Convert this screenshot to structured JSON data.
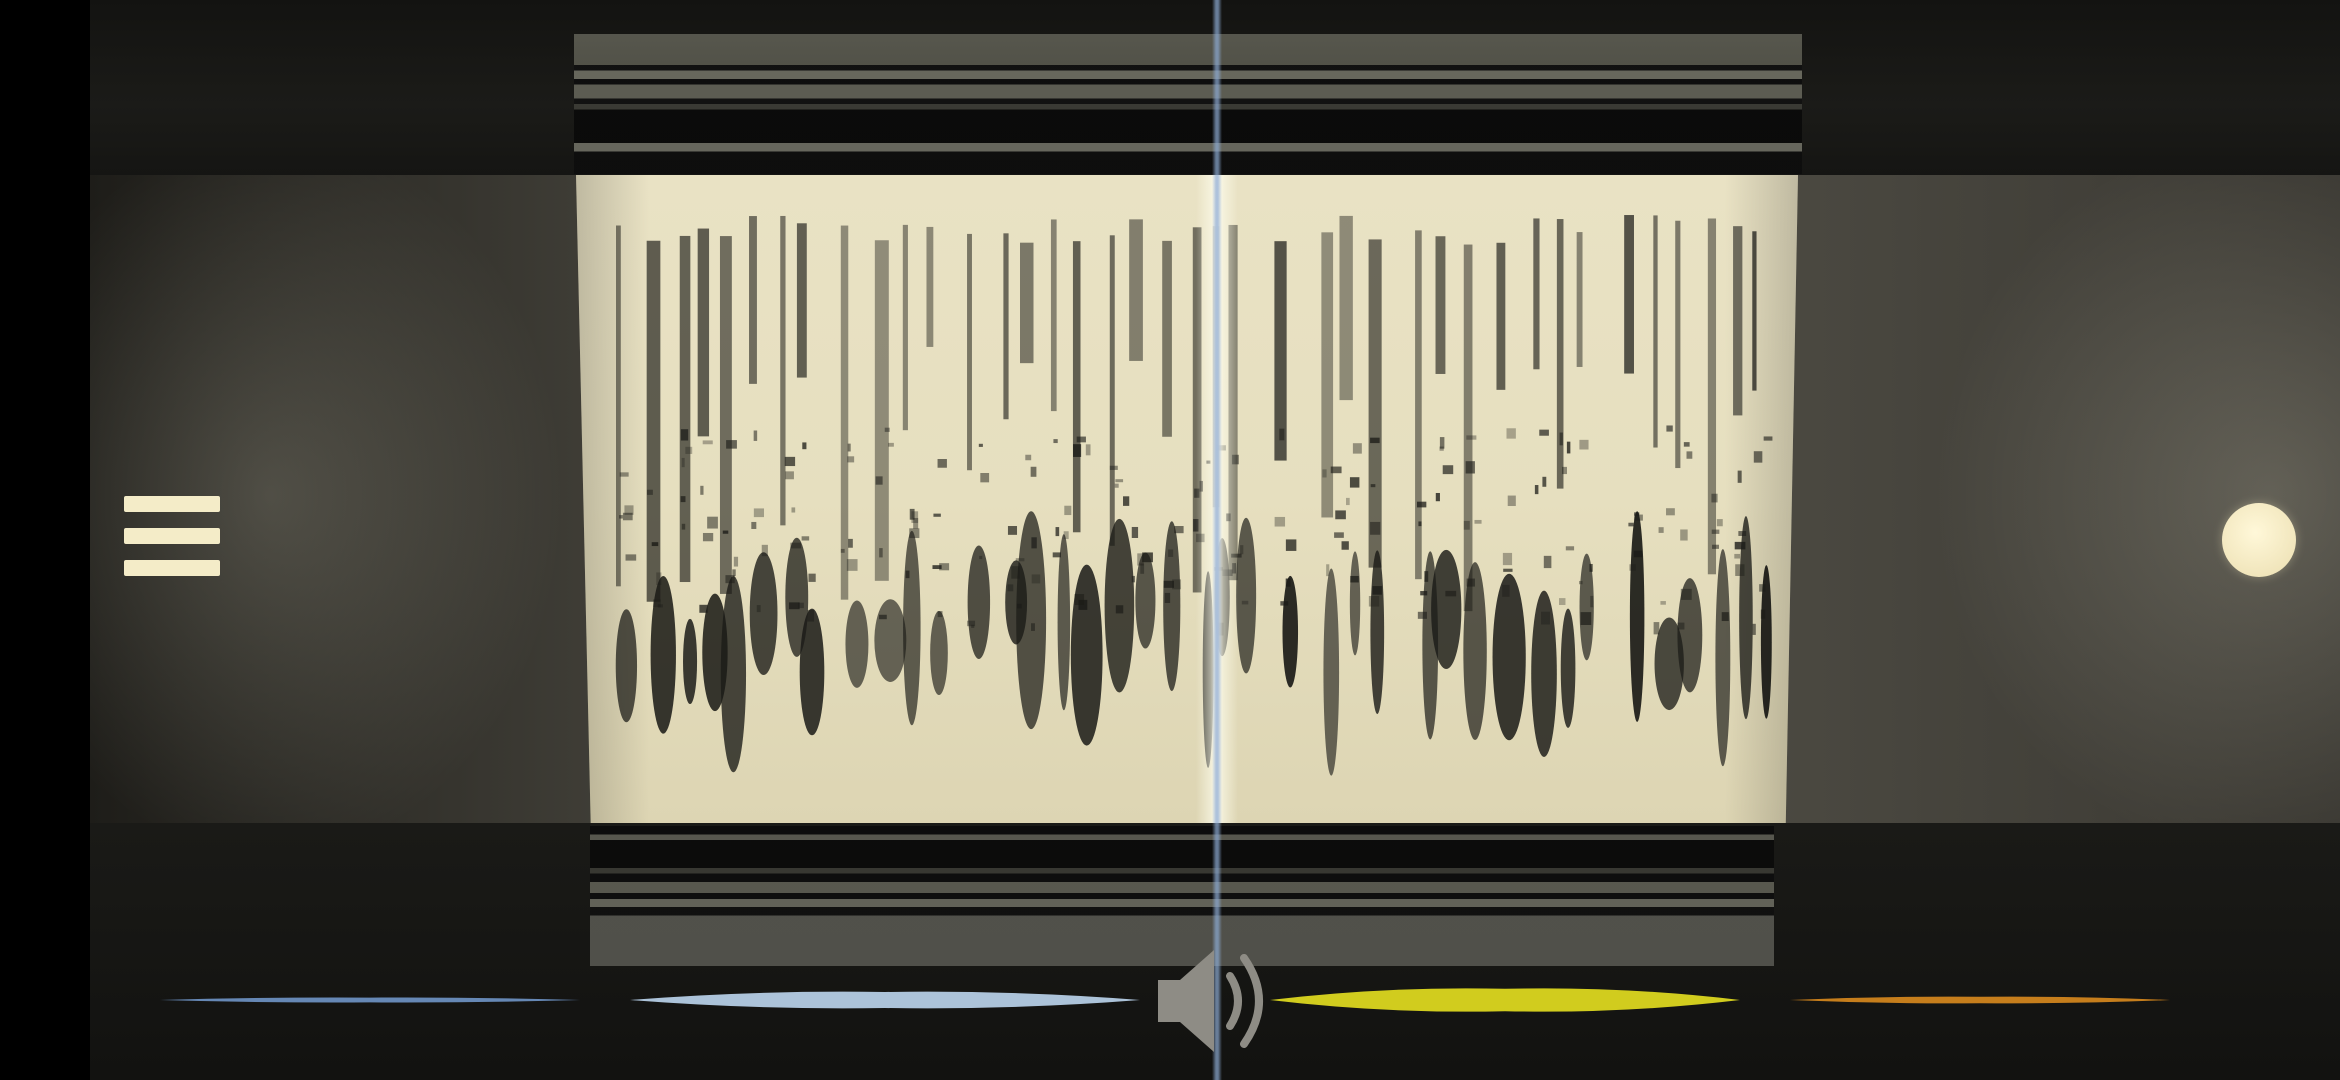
{
  "app": {
    "name": "spectrogram-viewer"
  },
  "controls": {
    "menu": {
      "icon": "hamburger-menu-icon"
    },
    "record": {
      "icon": "record-dot-icon"
    },
    "speaker": {
      "icon": "speaker-volume-icon"
    }
  },
  "colors": {
    "paper": "#e8e1c1",
    "ink": "#1b1b17",
    "accent_cream": "#f4ecc8",
    "wave_blue": "#6f95c8",
    "wave_light_blue": "#bcd6f0",
    "wave_yellow": "#e6e020",
    "wave_orange": "#d98a1e"
  },
  "waveform": {
    "segments": [
      {
        "name": "segment-1",
        "color": "#6f95c8"
      },
      {
        "name": "segment-2",
        "color": "#bcd6f0"
      },
      {
        "name": "segment-3",
        "color": "#e6e020"
      },
      {
        "name": "segment-4",
        "color": "#d98a1e"
      }
    ]
  }
}
